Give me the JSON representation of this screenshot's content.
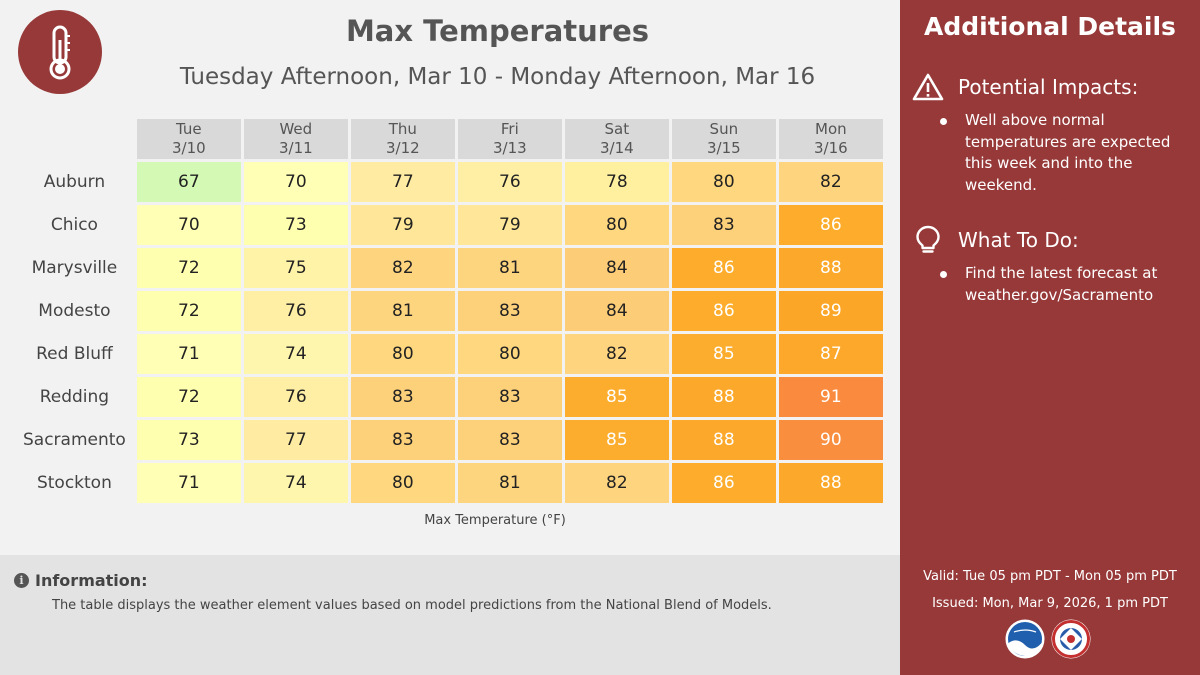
{
  "header": {
    "title": "Max Temperatures",
    "subtitle": "Tuesday Afternoon, Mar 10 - Monday Afternoon, Mar 16"
  },
  "table": {
    "days": [
      {
        "dow": "Tue",
        "date": "3/10"
      },
      {
        "dow": "Wed",
        "date": "3/11"
      },
      {
        "dow": "Thu",
        "date": "3/12"
      },
      {
        "dow": "Fri",
        "date": "3/13"
      },
      {
        "dow": "Sat",
        "date": "3/14"
      },
      {
        "dow": "Sun",
        "date": "3/15"
      },
      {
        "dow": "Mon",
        "date": "3/16"
      }
    ],
    "rows": [
      {
        "city": "Auburn",
        "temps": [
          67,
          70,
          77,
          76,
          78,
          80,
          82
        ]
      },
      {
        "city": "Chico",
        "temps": [
          70,
          73,
          79,
          79,
          80,
          83,
          86
        ]
      },
      {
        "city": "Marysville",
        "temps": [
          72,
          75,
          82,
          81,
          84,
          86,
          88
        ]
      },
      {
        "city": "Modesto",
        "temps": [
          72,
          76,
          81,
          83,
          84,
          86,
          89
        ]
      },
      {
        "city": "Red Bluff",
        "temps": [
          71,
          74,
          80,
          80,
          82,
          85,
          87
        ]
      },
      {
        "city": "Redding",
        "temps": [
          72,
          76,
          83,
          83,
          85,
          88,
          91
        ]
      },
      {
        "city": "Sacramento",
        "temps": [
          73,
          77,
          83,
          83,
          85,
          88,
          90
        ]
      },
      {
        "city": "Stockton",
        "temps": [
          71,
          74,
          80,
          81,
          82,
          86,
          88
        ]
      }
    ],
    "legend_label": "Max Temperature (°F)"
  },
  "information": {
    "title": "Information:",
    "text": "The table displays the weather element values based on model predictions from the National Blend of Models."
  },
  "sidebar": {
    "title": "Additional Details",
    "impacts_heading": "Potential Impacts:",
    "impacts_text": "Well above normal temperatures are expected this week and into the weekend.",
    "todo_heading": "What To Do:",
    "todo_text": "Find the latest forecast at weather.gov/Sacramento",
    "valid": "Valid: Tue 05 pm PDT - Mon 05 pm PDT",
    "issued": "Issued: Mon, Mar 9, 2026, 1 pm PDT"
  },
  "colors": {
    "sidebar_bg": "#973939",
    "header_bg": "#d9d9d9",
    "temp_scale": {
      "67": "#d4f9b4",
      "70": "#ffffb5",
      "71": "#ffffb5",
      "72": "#ffffb0",
      "73": "#ffffb0",
      "74": "#fff6ad",
      "75": "#fff3a8",
      "76": "#ffefa5",
      "77": "#ffeca2",
      "78": "#fff09f",
      "79": "#ffe698",
      "80": "#fed77f",
      "81": "#fed57f",
      "82": "#fed47f",
      "83": "#fdd07a",
      "84": "#fdcc76",
      "85": "#fcad2e",
      "86": "#fdad2b",
      "87": "#fda82a",
      "88": "#fca82a",
      "89": "#fba626",
      "90": "#fa8e3f",
      "91": "#fa8b3e"
    },
    "white_text_min": 85
  }
}
